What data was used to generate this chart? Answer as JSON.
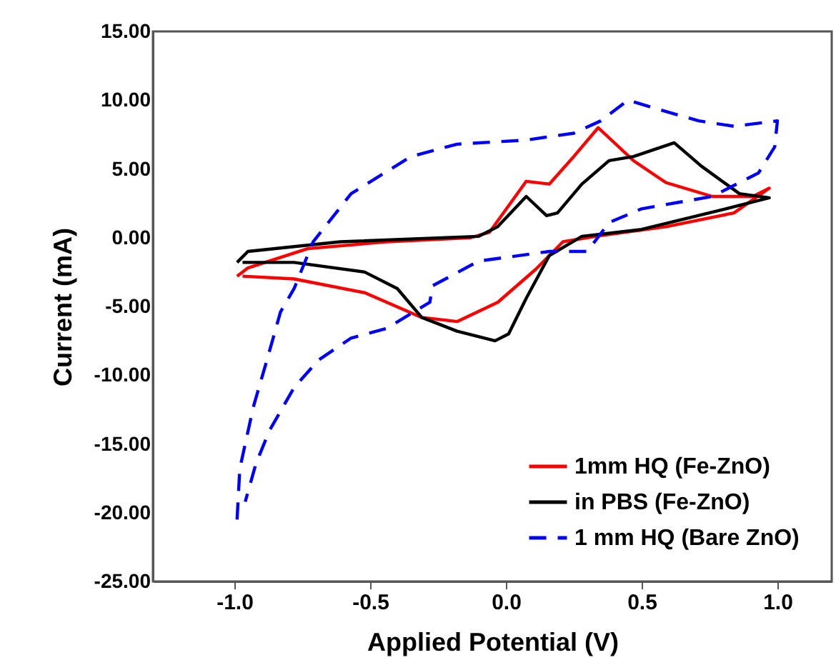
{
  "chart_data": {
    "type": "line",
    "xlabel": "Applied Potential (V)",
    "ylabel": "Current (mA)",
    "xlim": [
      -1.3,
      1.2
    ],
    "ylim": [
      -25,
      15
    ],
    "xticks": [
      {
        "value": -1,
        "label": "-1.0"
      },
      {
        "value": -0.5,
        "label": "-0.5"
      },
      {
        "value": 0,
        "label": "0.0"
      },
      {
        "value": 0.5,
        "label": "0.5"
      },
      {
        "value": 1,
        "label": "1.0"
      }
    ],
    "yticks": [
      {
        "value": 15,
        "label": "15.00"
      },
      {
        "value": 10,
        "label": "10.00"
      },
      {
        "value": 5,
        "label": "5.00"
      },
      {
        "value": 0,
        "label": "0.00"
      },
      {
        "value": -5,
        "label": "-5.00"
      },
      {
        "value": -10,
        "label": "-10.00"
      },
      {
        "value": -15,
        "label": "-15.00"
      },
      {
        "value": -20,
        "label": "-20.00"
      },
      {
        "value": -25,
        "label": "-25.00"
      }
    ],
    "grid": false,
    "legend": "bottom right",
    "marker": "none",
    "series": [
      {
        "name": "1mm HQ (Fe-ZnO)",
        "color": "#ff0000",
        "line_style": "solid",
        "x": [
          -0.99,
          -0.95,
          -0.73,
          -0.44,
          -0.13,
          -0.06,
          0.075,
          0.16,
          0.25,
          0.34,
          0.47,
          0.59,
          0.76,
          0.91,
          0.97,
          0.84,
          0.59,
          0.33,
          0.21,
          0.11,
          -0.03,
          -0.18,
          -0.31,
          -0.52,
          -0.78,
          -0.97
        ],
        "values": [
          -2.8,
          -2.2,
          -0.8,
          -0.3,
          0.0,
          0.4,
          4.1,
          3.9,
          5.9,
          8.0,
          5.6,
          4.0,
          3.0,
          3.0,
          3.6,
          1.8,
          0.8,
          0.1,
          -0.3,
          -2.3,
          -4.7,
          -6.1,
          -5.8,
          -4.0,
          -3.0,
          -2.8
        ]
      },
      {
        "name": "in PBS (Fe-ZnO)",
        "color": "#000000",
        "line_style": "solid",
        "x": [
          -0.99,
          -0.95,
          -0.61,
          -0.1,
          -0.03,
          0.075,
          0.15,
          0.19,
          0.28,
          0.38,
          0.47,
          0.62,
          0.72,
          0.86,
          0.97,
          0.81,
          0.5,
          0.28,
          0.16,
          0.075,
          0.01,
          -0.04,
          -0.18,
          -0.31,
          -0.4,
          -0.52,
          -0.78,
          -0.97
        ],
        "values": [
          -1.8,
          -1.0,
          -0.3,
          0.1,
          0.8,
          3.0,
          1.6,
          1.8,
          3.9,
          5.6,
          5.9,
          6.9,
          5.2,
          3.2,
          2.9,
          2.1,
          0.6,
          0.1,
          -1.3,
          -4.4,
          -7.0,
          -7.5,
          -6.8,
          -5.8,
          -3.7,
          -2.5,
          -1.8,
          -1.8
        ]
      },
      {
        "name": "1 mm HQ (Bare ZnO)",
        "color": "#0000ff",
        "line_style": "dashed",
        "x": [
          -0.99,
          -0.98,
          -0.93,
          -0.88,
          -0.83,
          -0.78,
          -0.71,
          -0.57,
          -0.35,
          -0.18,
          0.075,
          0.25,
          0.35,
          0.45,
          0.55,
          0.71,
          0.84,
          1.0,
          0.99,
          0.93,
          0.76,
          0.5,
          0.38,
          0.3,
          0.16,
          -0.1,
          -0.27,
          -0.28,
          -0.44,
          -0.57,
          -0.69,
          -0.78,
          -0.87,
          -0.92,
          -0.96
        ],
        "values": [
          -20.5,
          -16.8,
          -12.3,
          -8.9,
          -5.4,
          -3.7,
          -0.3,
          3.2,
          5.9,
          6.8,
          7.1,
          7.6,
          8.5,
          10.0,
          9.4,
          8.5,
          8.1,
          8.5,
          6.6,
          4.7,
          3.0,
          2.1,
          1.1,
          -1.0,
          -1.0,
          -1.7,
          -3.5,
          -4.7,
          -6.6,
          -7.3,
          -8.9,
          -10.9,
          -14.0,
          -16.4,
          -19.2
        ]
      }
    ]
  }
}
